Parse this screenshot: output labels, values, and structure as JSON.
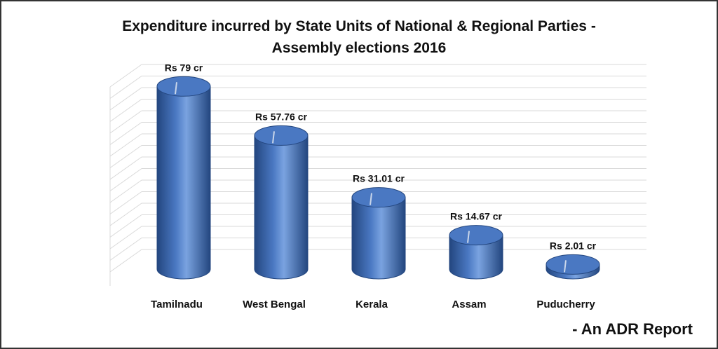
{
  "chart_data": {
    "type": "bar",
    "style": "3d-cylinder",
    "title": [
      "Expenditure incurred by State Units of National & Regional Parties -",
      "Assembly elections 2016"
    ],
    "categories": [
      "Tamilnadu",
      "West Bengal",
      "Kerala",
      "Assam",
      "Puducherry"
    ],
    "values": [
      79,
      57.76,
      31.01,
      14.67,
      2.01
    ],
    "data_labels": [
      "Rs 79 cr",
      "Rs 57.76 cr",
      "Rs 31.01 cr",
      "Rs 14.67 cr",
      "Rs 2.01 cr"
    ],
    "ylim": [
      0,
      80
    ],
    "grid": true,
    "legend": "none"
  },
  "source_note": "- An ADR Report",
  "colors": {
    "bar": "#4a78c2",
    "bar_dark": "#23467f",
    "bar_light": "#7aa3e0",
    "grid": "#d9d9d9",
    "text": "#111111"
  }
}
